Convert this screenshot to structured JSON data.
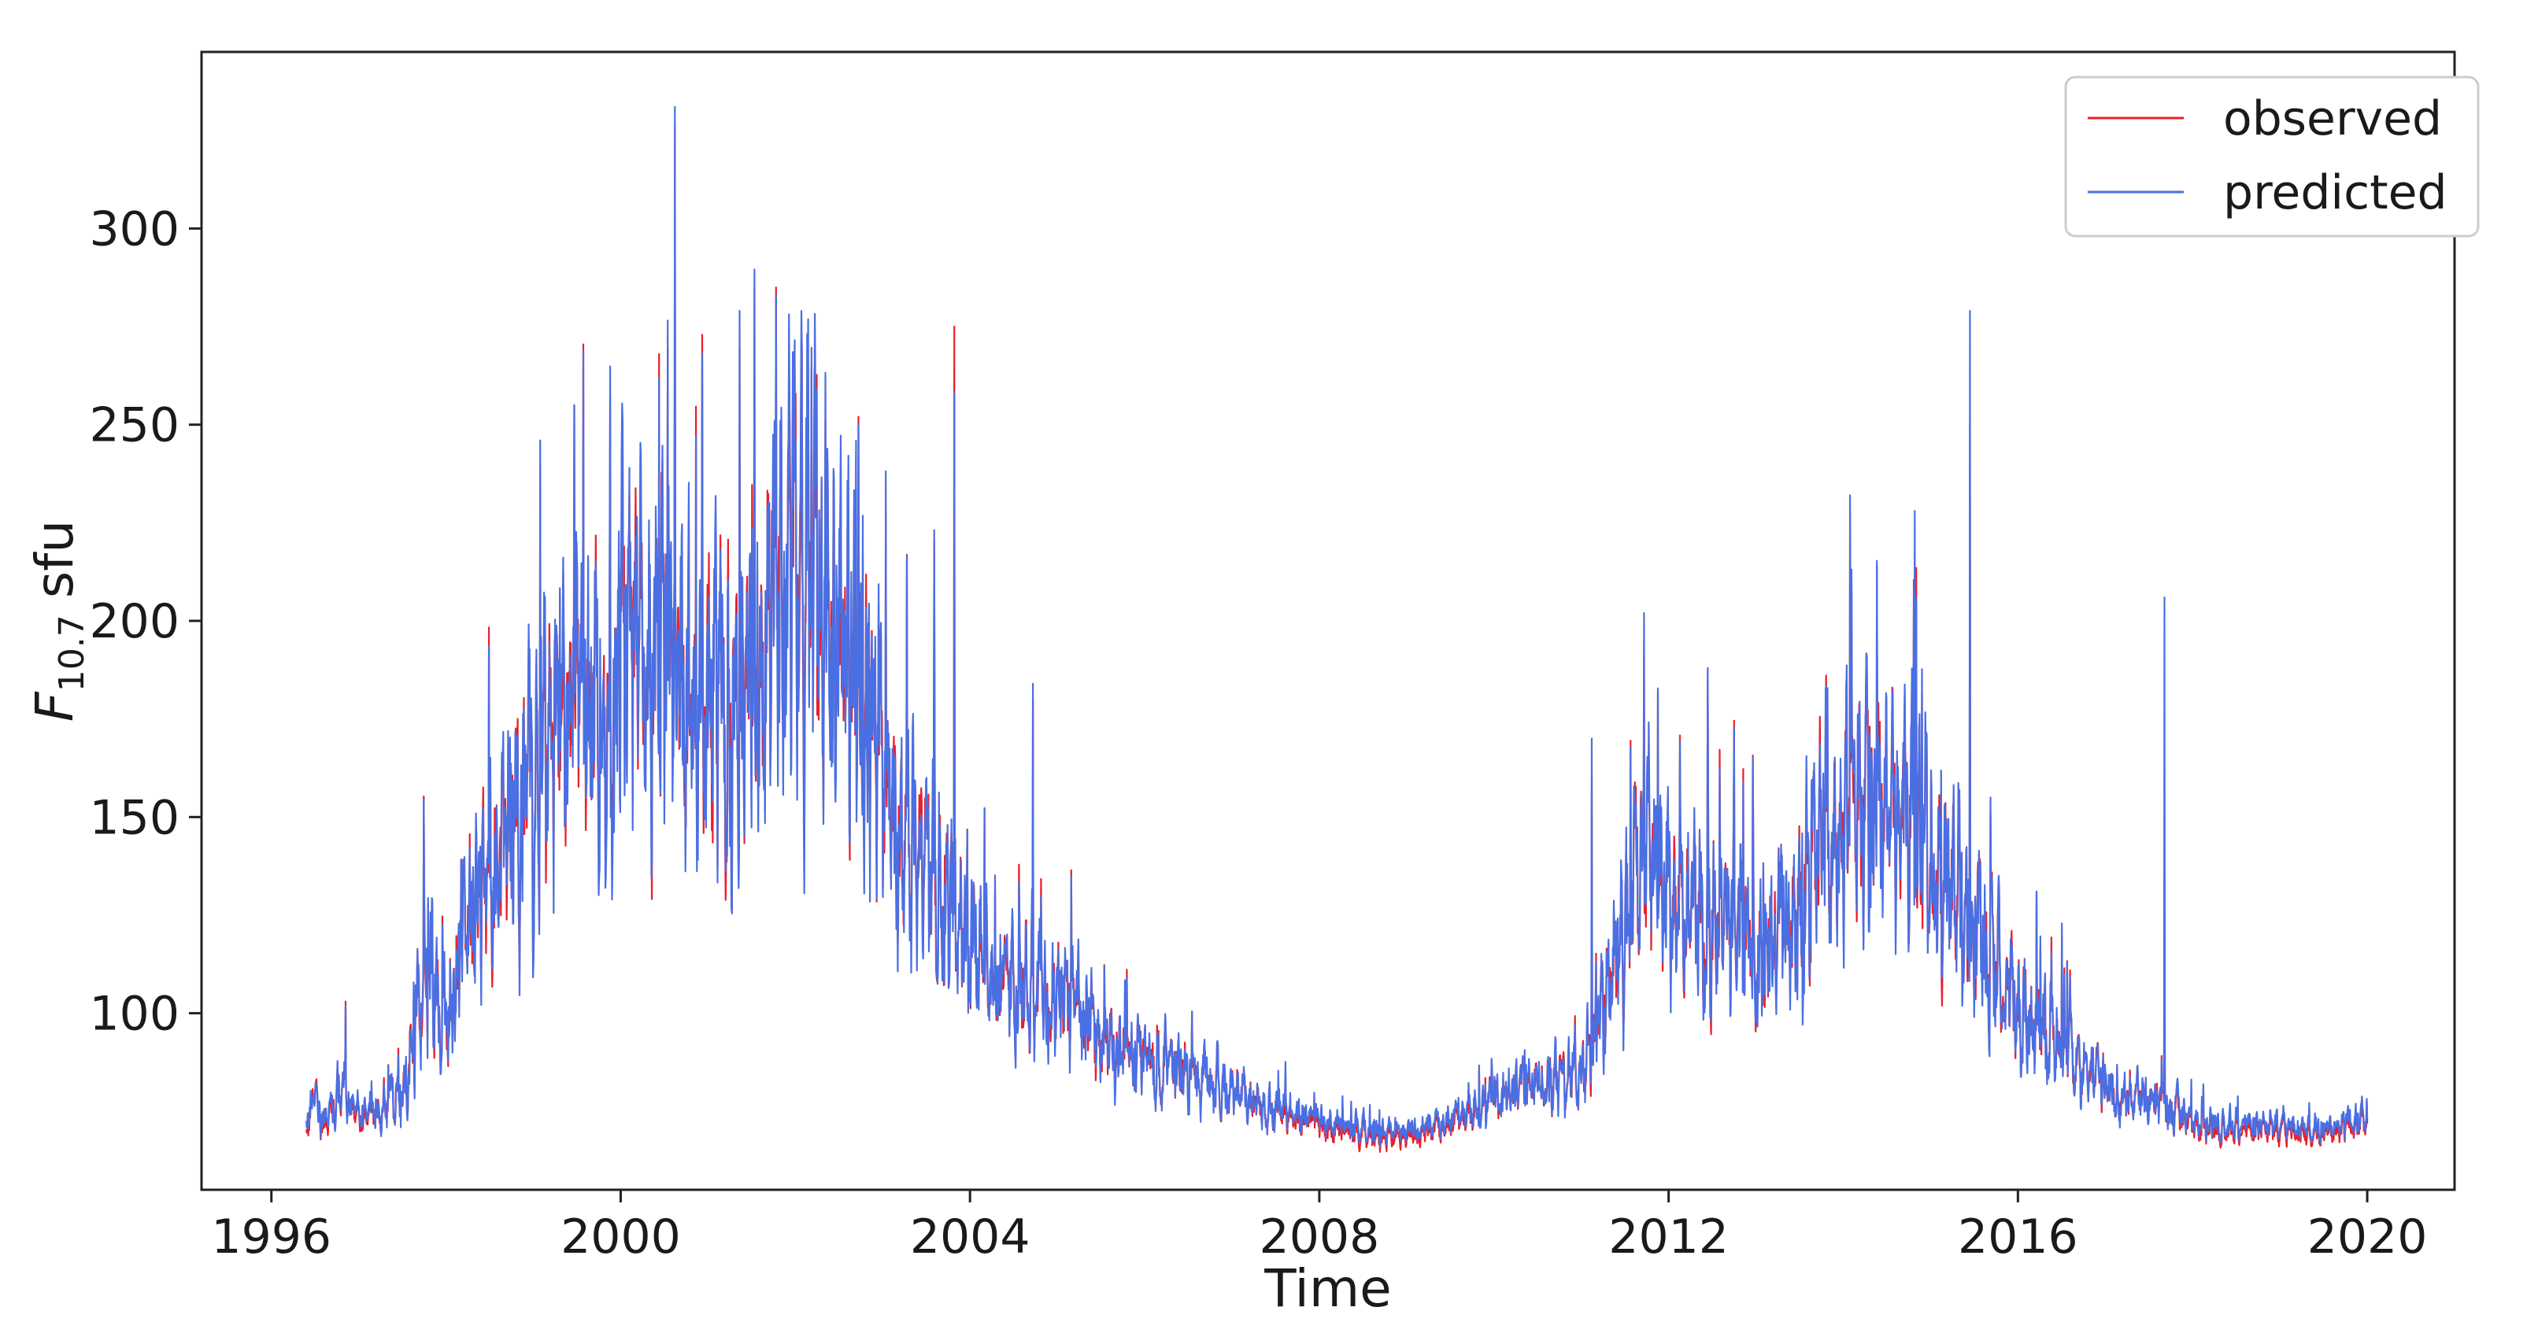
{
  "chart_data": {
    "type": "line",
    "title": "",
    "xlabel": "Time",
    "ylabel": {
      "symbol": "F",
      "subscript": "10.7",
      "unit": " sfu"
    },
    "xlim": [
      1995.2,
      2021.0
    ],
    "ylim": [
      55,
      345
    ],
    "x_ticks": [
      1996,
      2000,
      2004,
      2008,
      2012,
      2016,
      2020
    ],
    "x_tick_labels": [
      "1996",
      "2000",
      "2004",
      "2008",
      "2012",
      "2016",
      "2020"
    ],
    "y_ticks": [
      100,
      150,
      200,
      250,
      300
    ],
    "y_tick_labels": [
      "100",
      "150",
      "200",
      "250",
      "300"
    ],
    "grid": false,
    "legend": {
      "placement": "top-right",
      "entries": [
        "observed",
        "predicted"
      ]
    },
    "series": [
      {
        "name": "observed",
        "color": "#e8202a",
        "x_start": "1996-05-01",
        "x_end": "2020-01-01",
        "sampling": "daily",
        "envelope": [
          [
            1996.4,
            70
          ],
          [
            1996.5,
            80
          ],
          [
            1996.6,
            70
          ],
          [
            1996.8,
            80
          ],
          [
            1997.0,
            72
          ],
          [
            1997.5,
            80
          ],
          [
            1997.8,
            115
          ],
          [
            1998.0,
            100
          ],
          [
            1998.3,
            125
          ],
          [
            1998.6,
            150
          ],
          [
            1998.8,
            145
          ],
          [
            1999.0,
            160
          ],
          [
            1999.3,
            170
          ],
          [
            1999.6,
            180
          ],
          [
            1999.9,
            185
          ],
          [
            2000.2,
            200
          ],
          [
            2000.5,
            190
          ],
          [
            2000.8,
            175
          ],
          [
            2001.1,
            180
          ],
          [
            2001.4,
            170
          ],
          [
            2001.7,
            200
          ],
          [
            2001.9,
            215
          ],
          [
            2002.2,
            210
          ],
          [
            2002.5,
            195
          ],
          [
            2002.8,
            175
          ],
          [
            2003.1,
            155
          ],
          [
            2003.4,
            140
          ],
          [
            2003.7,
            135
          ],
          [
            2004.0,
            115
          ],
          [
            2004.4,
            110
          ],
          [
            2004.8,
            105
          ],
          [
            2005.2,
            100
          ],
          [
            2005.6,
            92
          ],
          [
            2006.0,
            88
          ],
          [
            2006.5,
            85
          ],
          [
            2007.0,
            80
          ],
          [
            2007.5,
            75
          ],
          [
            2008.0,
            71
          ],
          [
            2008.5,
            69
          ],
          [
            2009.0,
            68
          ],
          [
            2009.5,
            71
          ],
          [
            2010.0,
            78
          ],
          [
            2010.5,
            82
          ],
          [
            2011.0,
            85
          ],
          [
            2011.3,
            105
          ],
          [
            2011.7,
            140
          ],
          [
            2012.0,
            130
          ],
          [
            2012.3,
            125
          ],
          [
            2012.7,
            122
          ],
          [
            2013.0,
            118
          ],
          [
            2013.4,
            125
          ],
          [
            2013.8,
            145
          ],
          [
            2014.1,
            150
          ],
          [
            2014.5,
            148
          ],
          [
            2014.8,
            150
          ],
          [
            2015.1,
            135
          ],
          [
            2015.4,
            125
          ],
          [
            2015.7,
            115
          ],
          [
            2016.0,
            100
          ],
          [
            2016.4,
            95
          ],
          [
            2016.8,
            85
          ],
          [
            2017.2,
            80
          ],
          [
            2017.6,
            78
          ],
          [
            2018.0,
            71
          ],
          [
            2018.5,
            70
          ],
          [
            2019.0,
            70
          ],
          [
            2019.5,
            69
          ],
          [
            2020.0,
            72
          ]
        ]
      },
      {
        "name": "predicted",
        "color": "#4a6fe3",
        "x_start": "1996-05-01",
        "x_end": "2020-01-01",
        "sampling": "daily"
      }
    ],
    "peaks": [
      {
        "x": 2000.62,
        "observed": 326,
        "predicted": 331
      },
      {
        "x": 2001.78,
        "observed": 285,
        "predicted": 283
      },
      {
        "x": 2003.82,
        "observed": 275,
        "predicted": 258
      },
      {
        "x": 2001.36,
        "observed": 270,
        "predicted": 279
      },
      {
        "x": 2000.44,
        "observed": 268,
        "predicted": 262
      },
      {
        "x": 2002.72,
        "observed": 252,
        "predicted": 250
      },
      {
        "x": 1999.47,
        "observed": 255,
        "predicted": 255
      },
      {
        "x": 1999.08,
        "observed": 240,
        "predicted": 246
      },
      {
        "x": 2015.45,
        "observed": 250,
        "predicted": 279
      },
      {
        "x": 2014.08,
        "observed": 228,
        "predicted": 232
      },
      {
        "x": 2014.82,
        "observed": 218,
        "predicted": 228
      },
      {
        "x": 2017.68,
        "observed": 135,
        "predicted": 206
      },
      {
        "x": 2011.72,
        "observed": 195,
        "predicted": 202
      },
      {
        "x": 2012.45,
        "observed": 185,
        "predicted": 188
      },
      {
        "x": 2004.72,
        "observed": 180,
        "predicted": 184
      },
      {
        "x": 2011.12,
        "observed": 160,
        "predicted": 170
      },
      {
        "x": 1996.85,
        "observed": 103,
        "predicted": 102
      }
    ]
  }
}
